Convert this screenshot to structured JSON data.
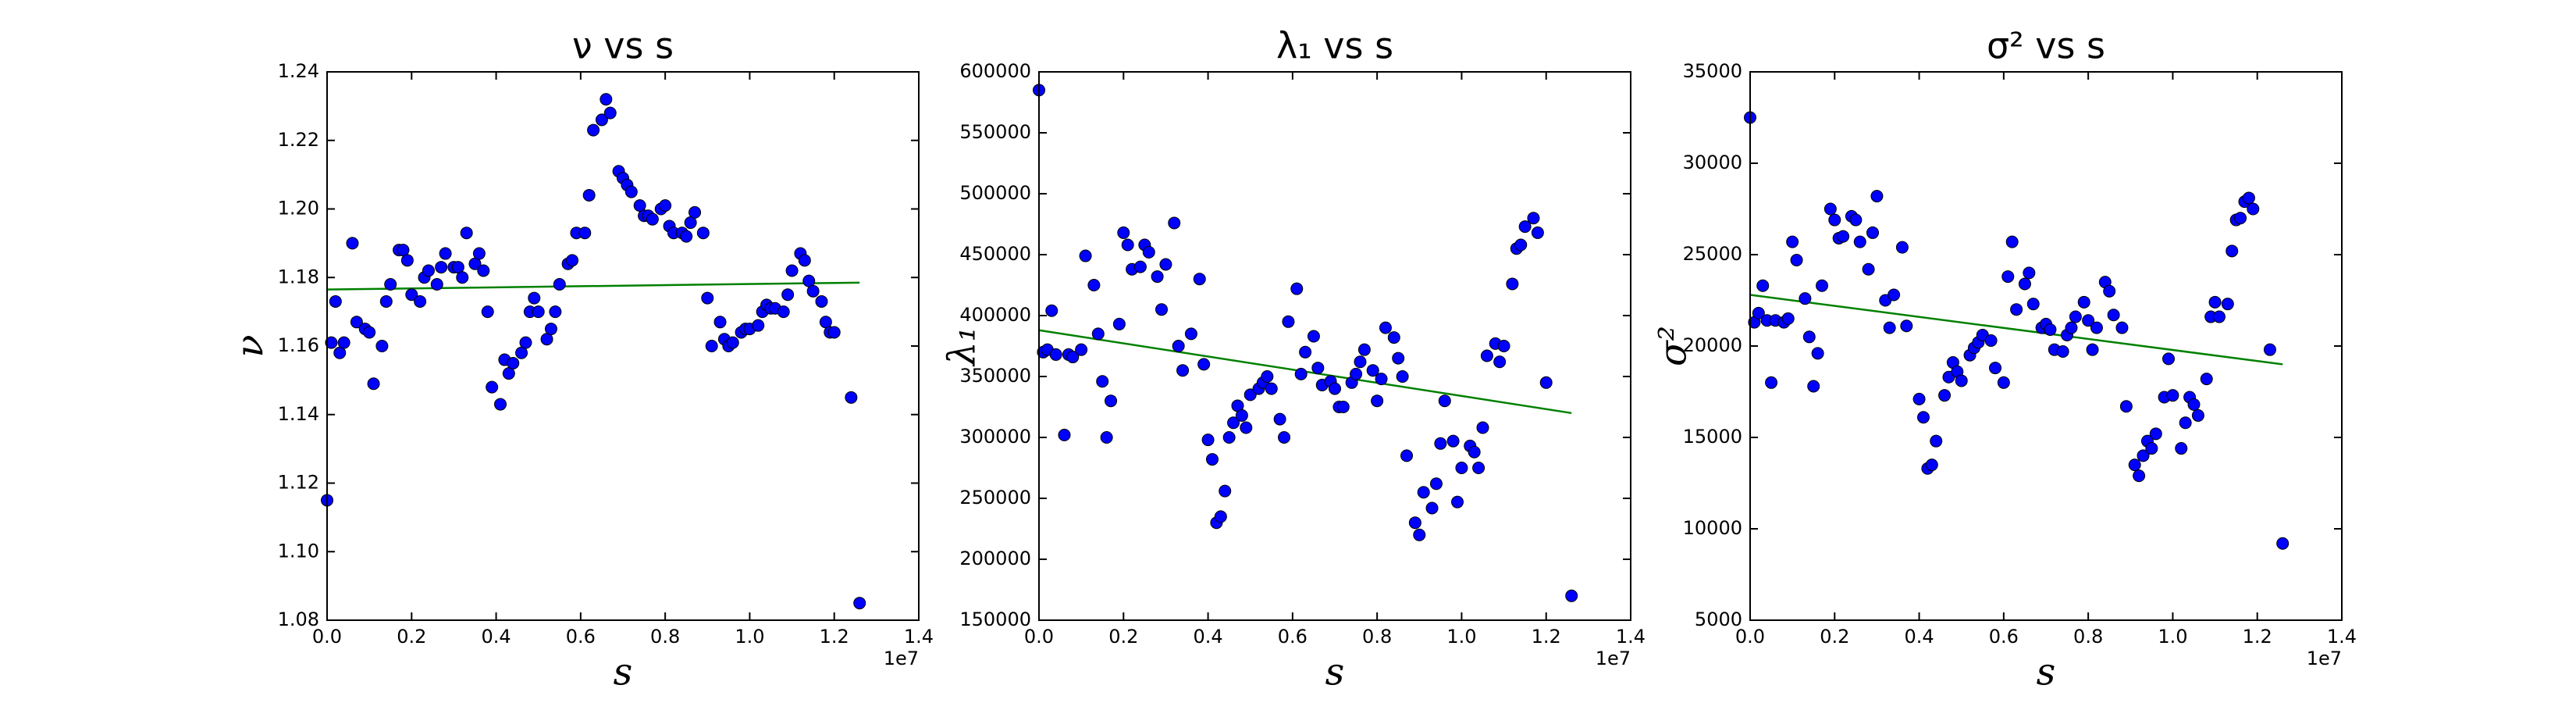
{
  "chart_data": [
    {
      "type": "scatter",
      "title": "ν vs s",
      "xlabel": "s",
      "ylabel": "ν",
      "x_offset_label": "1e7",
      "color": "#0000ff",
      "xlim": [
        0,
        1.4
      ],
      "xticks": [
        {
          "value": 0,
          "label": "0.0"
        },
        0.2,
        0.4,
        0.6,
        0.8,
        {
          "value": 1,
          "label": "1.0"
        },
        1.2,
        1.4
      ],
      "ylim": [
        1.08,
        1.24
      ],
      "yticks": [
        1.08,
        {
          "value": 1.1,
          "label": "1.10"
        },
        1.12,
        1.14,
        1.16,
        1.18,
        {
          "value": 1.2,
          "label": "1.20"
        },
        1.22,
        1.24
      ],
      "x": [
        0,
        0.01,
        0.02,
        0.03,
        0.04,
        0.06,
        0.07,
        0.09,
        0.1,
        0.11,
        0.13,
        0.14,
        0.15,
        0.17,
        0.18,
        0.19,
        0.2,
        0.22,
        0.23,
        0.24,
        0.26,
        0.27,
        0.28,
        0.3,
        0.31,
        0.32,
        0.33,
        0.35,
        0.36,
        0.37,
        0.38,
        0.39,
        0.41,
        0.42,
        0.43,
        0.44,
        0.46,
        0.47,
        0.48,
        0.49,
        0.5,
        0.52,
        0.53,
        0.54,
        0.55,
        0.57,
        0.58,
        0.59,
        0.61,
        0.62,
        0.63,
        0.65,
        0.66,
        0.67,
        0.69,
        0.7,
        0.71,
        0.72,
        0.74,
        0.75,
        0.76,
        0.77,
        0.79,
        0.8,
        0.81,
        0.82,
        0.84,
        0.85,
        0.86,
        0.87,
        0.89,
        0.9,
        0.91,
        0.93,
        0.94,
        0.95,
        0.96,
        0.98,
        0.99,
        1.0,
        1.02,
        1.03,
        1.04,
        1.05,
        1.06,
        1.08,
        1.09,
        1.1,
        1.12,
        1.13,
        1.14,
        1.15,
        1.17,
        1.18,
        1.19,
        1.2,
        1.24,
        1.26
      ],
      "values": [
        1.115,
        1.161,
        1.173,
        1.158,
        1.161,
        1.19,
        1.167,
        1.165,
        1.164,
        1.149,
        1.16,
        1.173,
        1.178,
        1.188,
        1.188,
        1.185,
        1.175,
        1.173,
        1.18,
        1.182,
        1.178,
        1.183,
        1.187,
        1.183,
        1.183,
        1.18,
        1.193,
        1.184,
        1.187,
        1.182,
        1.17,
        1.148,
        1.143,
        1.156,
        1.152,
        1.155,
        1.158,
        1.161,
        1.17,
        1.174,
        1.17,
        1.162,
        1.165,
        1.17,
        1.178,
        1.184,
        1.185,
        1.193,
        1.193,
        1.204,
        1.223,
        1.226,
        1.232,
        1.228,
        1.211,
        1.209,
        1.207,
        1.205,
        1.201,
        1.198,
        1.198,
        1.197,
        1.2,
        1.201,
        1.195,
        1.193,
        1.193,
        1.192,
        1.196,
        1.199,
        1.193,
        1.174,
        1.16,
        1.167,
        1.162,
        1.16,
        1.161,
        1.164,
        1.165,
        1.165,
        1.166,
        1.17,
        1.172,
        1.171,
        1.171,
        1.17,
        1.175,
        1.182,
        1.187,
        1.185,
        1.179,
        1.176,
        1.173,
        1.167,
        1.164,
        1.164,
        1.145,
        1.085
      ],
      "trend": {
        "color": "#008000",
        "x": [
          0,
          1.26
        ],
        "values": [
          1.1765,
          1.1785
        ]
      }
    },
    {
      "type": "scatter",
      "title": "λ₁ vs s",
      "xlabel": "s",
      "ylabel": "λ₁",
      "x_offset_label": "1e7",
      "color": "#0000ff",
      "xlim": [
        0,
        1.4
      ],
      "xticks": [
        {
          "value": 0,
          "label": "0.0"
        },
        0.2,
        0.4,
        0.6,
        0.8,
        {
          "value": 1,
          "label": "1.0"
        },
        1.2,
        1.4
      ],
      "ylim": [
        150000,
        600000
      ],
      "yticks": [
        150000,
        200000,
        250000,
        300000,
        350000,
        400000,
        450000,
        500000,
        550000,
        600000
      ],
      "x": [
        0,
        0.01,
        0.02,
        0.03,
        0.04,
        0.06,
        0.07,
        0.08,
        0.1,
        0.11,
        0.13,
        0.14,
        0.15,
        0.16,
        0.17,
        0.19,
        0.2,
        0.21,
        0.22,
        0.24,
        0.25,
        0.26,
        0.28,
        0.29,
        0.3,
        0.32,
        0.33,
        0.34,
        0.36,
        0.38,
        0.39,
        0.4,
        0.41,
        0.42,
        0.43,
        0.44,
        0.45,
        0.46,
        0.47,
        0.48,
        0.49,
        0.5,
        0.52,
        0.53,
        0.54,
        0.55,
        0.57,
        0.58,
        0.59,
        0.61,
        0.62,
        0.63,
        0.65,
        0.66,
        0.67,
        0.69,
        0.7,
        0.71,
        0.72,
        0.74,
        0.75,
        0.76,
        0.77,
        0.79,
        0.8,
        0.81,
        0.82,
        0.84,
        0.85,
        0.86,
        0.87,
        0.89,
        0.9,
        0.91,
        0.93,
        0.94,
        0.95,
        0.96,
        0.98,
        0.99,
        1.0,
        1.02,
        1.03,
        1.04,
        1.05,
        1.06,
        1.08,
        1.09,
        1.1,
        1.12,
        1.13,
        1.14,
        1.15,
        1.17,
        1.18,
        1.2,
        1.26
      ],
      "values": [
        585000,
        370000,
        372000,
        404000,
        368000,
        302000,
        368000,
        366000,
        372000,
        449000,
        425000,
        385000,
        346000,
        300000,
        330000,
        393000,
        468000,
        458000,
        438000,
        440000,
        458000,
        452000,
        432000,
        405000,
        442000,
        476000,
        375000,
        355000,
        385000,
        430000,
        360000,
        298000,
        282000,
        230000,
        235000,
        256000,
        300000,
        312000,
        326000,
        318000,
        308000,
        335000,
        340000,
        345000,
        350000,
        340000,
        315000,
        300000,
        395000,
        422000,
        352000,
        370000,
        383000,
        357000,
        343000,
        346000,
        340000,
        325000,
        325000,
        345000,
        352000,
        362000,
        372000,
        355000,
        330000,
        348000,
        390000,
        382000,
        365000,
        350000,
        285000,
        230000,
        220000,
        255000,
        242000,
        262000,
        295000,
        330000,
        297000,
        247000,
        275000,
        293000,
        288000,
        275000,
        308000,
        367000,
        377000,
        362000,
        375000,
        426000,
        455000,
        458000,
        473000,
        480000,
        468000,
        345000,
        170000
      ],
      "trend": {
        "color": "#008000",
        "x": [
          0,
          1.26
        ],
        "values": [
          388000,
          320000
        ]
      }
    },
    {
      "type": "scatter",
      "title": "σ² vs s",
      "xlabel": "s",
      "ylabel": "σ²",
      "x_offset_label": "1e7",
      "color": "#0000ff",
      "xlim": [
        0,
        1.4
      ],
      "xticks": [
        {
          "value": 0,
          "label": "0.0"
        },
        0.2,
        0.4,
        0.6,
        0.8,
        {
          "value": 1,
          "label": "1.0"
        },
        1.2,
        1.4
      ],
      "ylim": [
        5000,
        35000
      ],
      "yticks": [
        5000,
        10000,
        15000,
        20000,
        25000,
        30000,
        35000
      ],
      "x": [
        0,
        0.01,
        0.02,
        0.03,
        0.04,
        0.05,
        0.06,
        0.08,
        0.09,
        0.1,
        0.11,
        0.13,
        0.14,
        0.15,
        0.16,
        0.17,
        0.19,
        0.2,
        0.21,
        0.22,
        0.24,
        0.25,
        0.26,
        0.28,
        0.29,
        0.3,
        0.32,
        0.33,
        0.34,
        0.36,
        0.37,
        0.4,
        0.41,
        0.42,
        0.43,
        0.44,
        0.46,
        0.47,
        0.48,
        0.49,
        0.5,
        0.52,
        0.53,
        0.54,
        0.55,
        0.57,
        0.58,
        0.6,
        0.61,
        0.62,
        0.63,
        0.65,
        0.66,
        0.67,
        0.69,
        0.7,
        0.71,
        0.72,
        0.74,
        0.75,
        0.76,
        0.77,
        0.79,
        0.8,
        0.81,
        0.82,
        0.84,
        0.85,
        0.86,
        0.88,
        0.89,
        0.91,
        0.92,
        0.93,
        0.94,
        0.95,
        0.96,
        0.98,
        0.99,
        1.0,
        1.02,
        1.03,
        1.04,
        1.05,
        1.06,
        1.08,
        1.09,
        1.1,
        1.11,
        1.13,
        1.14,
        1.15,
        1.16,
        1.17,
        1.18,
        1.19,
        1.23,
        1.26
      ],
      "values": [
        32500,
        21300,
        21800,
        23300,
        21400,
        18000,
        21400,
        21300,
        21500,
        25700,
        24700,
        22600,
        20500,
        17800,
        19600,
        23300,
        27500,
        26900,
        25900,
        26000,
        27100,
        26900,
        25700,
        24200,
        26200,
        28200,
        22500,
        21000,
        22800,
        25400,
        21100,
        17100,
        16100,
        13300,
        13500,
        14800,
        17300,
        18300,
        19100,
        18600,
        18100,
        19500,
        19900,
        20200,
        20600,
        20300,
        18800,
        18000,
        23800,
        25700,
        22000,
        23400,
        24000,
        22300,
        21000,
        21200,
        20900,
        19800,
        19700,
        20600,
        21000,
        21600,
        22400,
        21400,
        19800,
        21000,
        23500,
        23000,
        21700,
        21000,
        16700,
        13500,
        12900,
        14000,
        14800,
        14400,
        15200,
        17200,
        19300,
        17300,
        14400,
        15800,
        17200,
        16800,
        16200,
        18200,
        21600,
        22400,
        21600,
        22300,
        25200,
        26900,
        27000,
        27900,
        28100,
        27500,
        19800,
        9200
      ],
      "trend": {
        "color": "#008000",
        "x": [
          0,
          1.26
        ],
        "values": [
          22800,
          19000
        ]
      }
    }
  ]
}
